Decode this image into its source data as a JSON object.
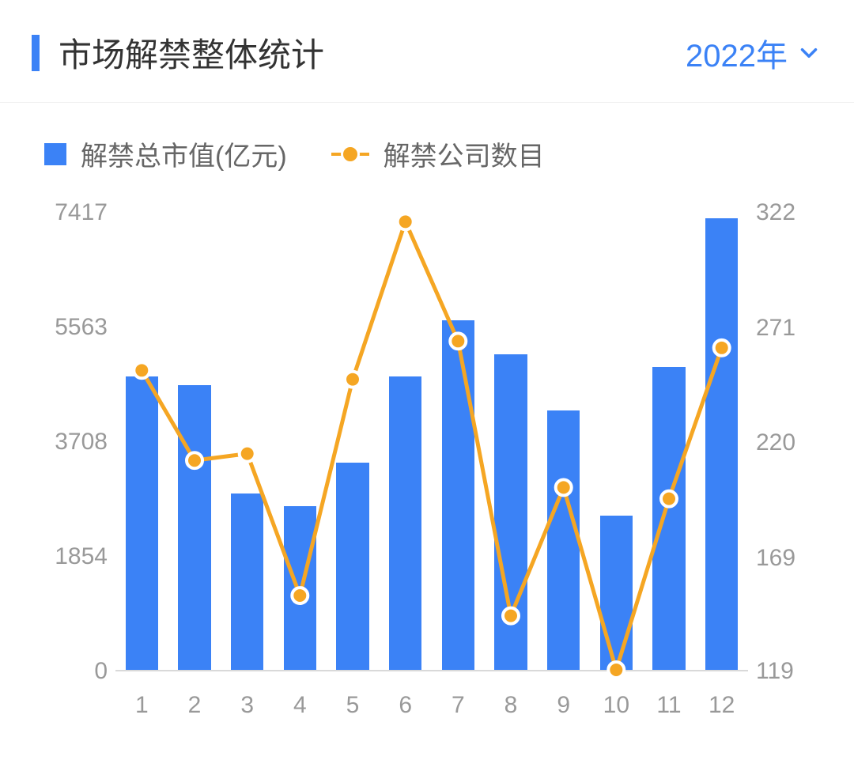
{
  "header": {
    "title": "市场解禁整体统计",
    "year_label": "2022年"
  },
  "legend": {
    "series_bar": "解禁总市值(亿元)",
    "series_line": "解禁公司数目"
  },
  "chart": {
    "type": "bar+line",
    "categories": [
      "1",
      "2",
      "3",
      "4",
      "5",
      "6",
      "7",
      "8",
      "9",
      "10",
      "11",
      "12"
    ],
    "bars": {
      "values": [
        4750,
        4600,
        2850,
        2650,
        3350,
        4750,
        5650,
        5100,
        4200,
        2500,
        4900,
        7300
      ],
      "colors": [
        "#3b82f6",
        "#3b82f6",
        "#3b82f6",
        "#3b82f6",
        "#3b82f6",
        "#3b82f6",
        "#3b82f6",
        "#3b82f6",
        "#3b82f6",
        "#3b82f6",
        "#3b82f6",
        "#3b82f6"
      ],
      "bar_width_frac": 0.62
    },
    "line": {
      "values": [
        252,
        212,
        215,
        152,
        248,
        318,
        265,
        143,
        200,
        119,
        195,
        262
      ],
      "color": "#f5a623",
      "line_width": 5,
      "marker_radius": 10
    },
    "y_left": {
      "min": 0,
      "max": 7417,
      "ticks": [
        0,
        1854,
        3708,
        5563,
        7417
      ],
      "label_color": "#999999",
      "label_fontsize": 30
    },
    "y_right": {
      "min": 119,
      "max": 322,
      "ticks": [
        119,
        169,
        220,
        271,
        322
      ],
      "label_color": "#999999",
      "label_fontsize": 30
    },
    "plot": {
      "background_color": "#ffffff",
      "axis_color": "#d9d9d9"
    },
    "colors": {
      "accent": "#3b82f6",
      "series_line": "#f5a623",
      "text_primary": "#333333",
      "text_secondary": "#666666",
      "text_muted": "#999999"
    }
  }
}
